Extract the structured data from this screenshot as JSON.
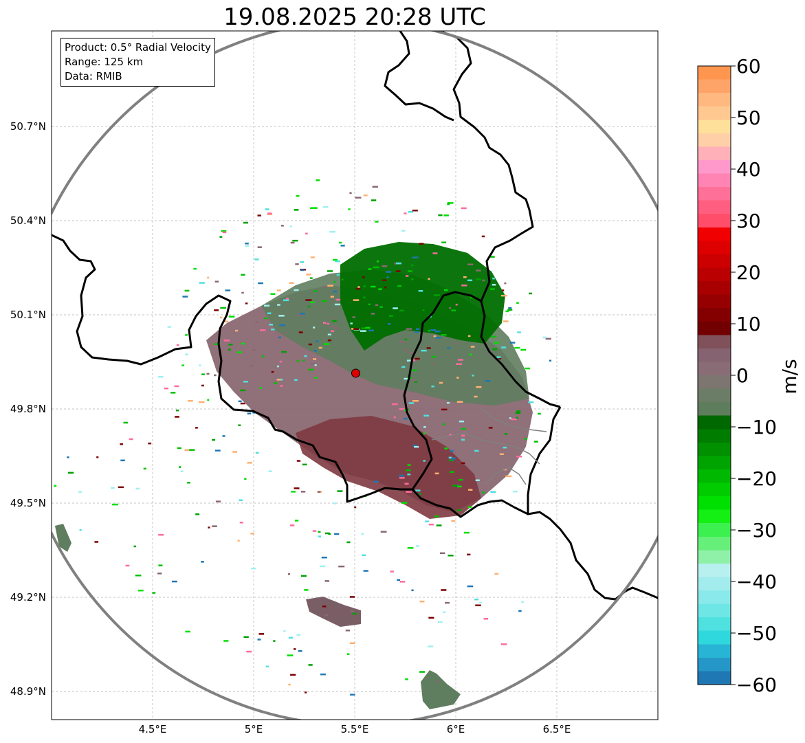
{
  "title": "19.08.2025 20:28 UTC",
  "info": {
    "product": "Product: 0.5° Radial Velocity",
    "range": "Range: 125 km",
    "data": "Data: RMIB"
  },
  "map": {
    "lon_range": [
      4.0,
      7.0
    ],
    "lat_range": [
      48.8,
      51.0
    ],
    "lon_ticks": [
      {
        "value": 4.5,
        "label": "4.5°E"
      },
      {
        "value": 5.0,
        "label": "5°E"
      },
      {
        "value": 5.5,
        "label": "5.5°E"
      },
      {
        "value": 6.0,
        "label": "6°E"
      },
      {
        "value": 6.5,
        "label": "6.5°E"
      }
    ],
    "lat_ticks": [
      {
        "value": 50.7,
        "label": "50.7°N"
      },
      {
        "value": 50.4,
        "label": "50.4°N"
      },
      {
        "value": 50.1,
        "label": "50.1°N"
      },
      {
        "value": 49.8,
        "label": "49.8°N"
      },
      {
        "value": 49.5,
        "label": "49.5°N"
      },
      {
        "value": 49.2,
        "label": "49.2°N"
      },
      {
        "value": 48.9,
        "label": "48.9°N"
      }
    ],
    "radar_site": {
      "lon": 5.505,
      "lat": 49.914
    },
    "grid": true
  },
  "colorbar": {
    "unit": "m/s",
    "min": -60,
    "max": 60,
    "ticks": [
      {
        "value": 60,
        "label": "60"
      },
      {
        "value": 50,
        "label": "50"
      },
      {
        "value": 40,
        "label": "40"
      },
      {
        "value": 30,
        "label": "30"
      },
      {
        "value": 20,
        "label": "20"
      },
      {
        "value": 10,
        "label": "10"
      },
      {
        "value": 0,
        "label": "0"
      },
      {
        "value": -10,
        "label": "−10"
      },
      {
        "value": -20,
        "label": "−20"
      },
      {
        "value": -30,
        "label": "−30"
      },
      {
        "value": -40,
        "label": "−40"
      },
      {
        "value": -50,
        "label": "−50"
      },
      {
        "value": -60,
        "label": "−60"
      }
    ],
    "colors": [
      "#1f77b4",
      "#2596c8",
      "#28b4d4",
      "#2fd8dc",
      "#4fe0e0",
      "#6fe6e6",
      "#8ae9ea",
      "#a3eced",
      "#b8f0f0",
      "#8ff0a8",
      "#66f07a",
      "#3cf050",
      "#14f014",
      "#00e000",
      "#00cc00",
      "#00b800",
      "#00a400",
      "#009000",
      "#007c00",
      "#006800",
      "#5e7d5c",
      "#6b7d66",
      "#7c7570",
      "#8a6c77",
      "#856370",
      "#80515a",
      "#720000",
      "#840000",
      "#960000",
      "#a80000",
      "#ba0000",
      "#cc0000",
      "#de0000",
      "#f00000",
      "#ff4d6a",
      "#ff5e80",
      "#ff7099",
      "#ff84b3",
      "#ff99cc",
      "#ffb0b8",
      "#ffd0a8",
      "#ffe09a",
      "#ffc890",
      "#ffb880",
      "#ffa468",
      "#ff9650"
    ]
  },
  "colors": {
    "border": "#000000",
    "range_ring": "#808080",
    "radar_marker": "#dd0000",
    "green_region": "#006e00",
    "gray_green_region": "#5f7d5f",
    "mauve_region": "#8a6872",
    "dark_red_region": "#7e3a40"
  }
}
